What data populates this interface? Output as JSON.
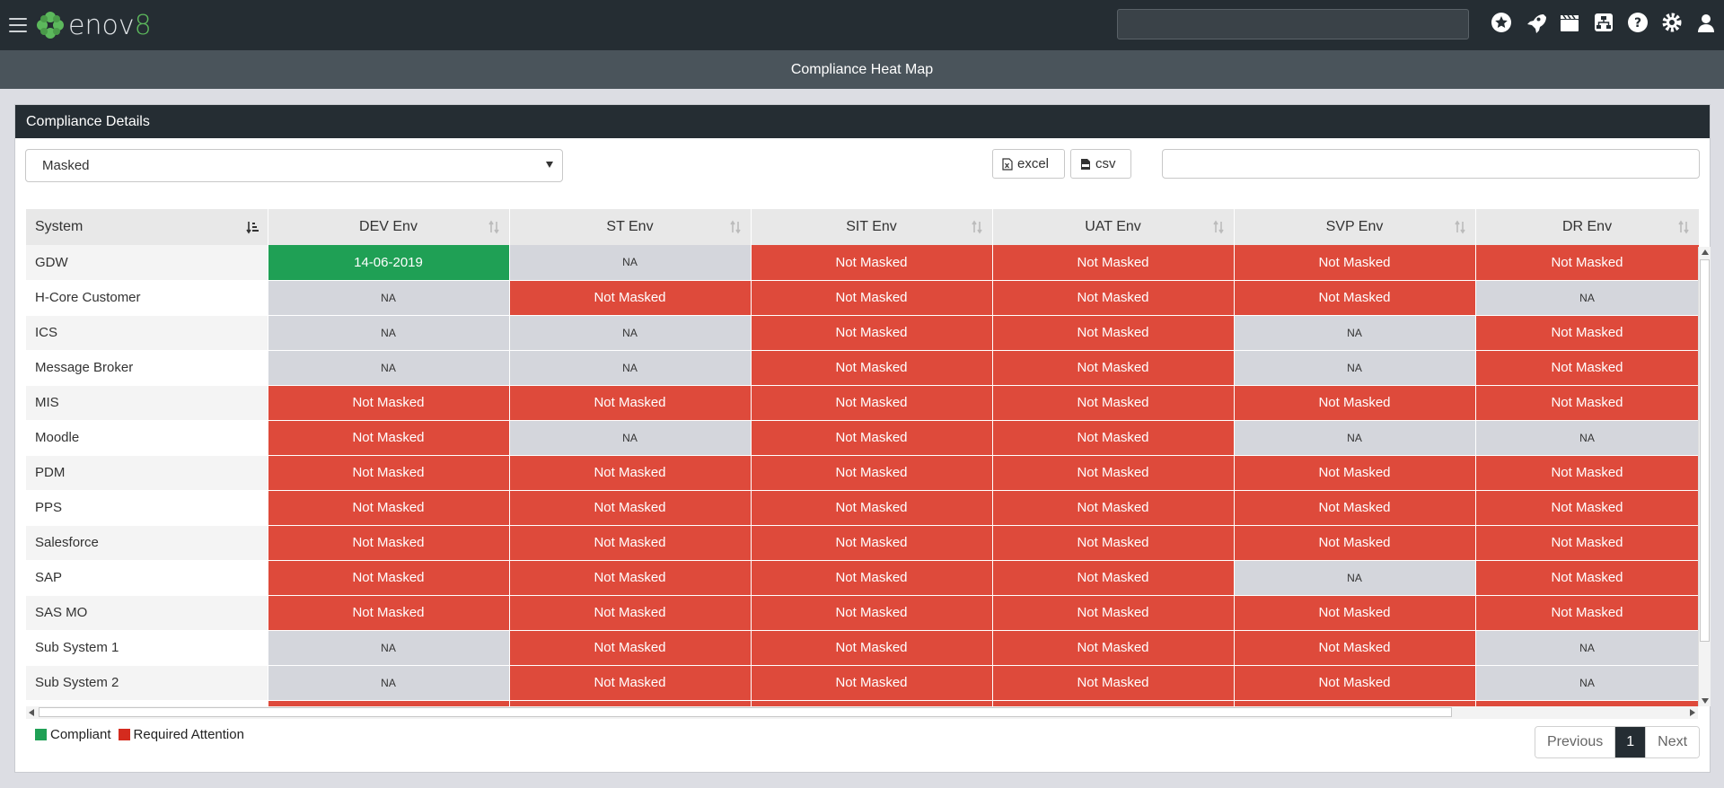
{
  "app": {
    "brand_prefix": "enov",
    "brand_suffix": "8",
    "page_title": "Compliance Heat Map"
  },
  "panel": {
    "title": "Compliance Details",
    "filter_selected": "Masked",
    "export_excel": "excel",
    "export_csv": "csv",
    "search_value": ""
  },
  "table": {
    "columns": [
      "System",
      "DEV Env",
      "ST Env",
      "SIT Env",
      "UAT Env",
      "SVP Env",
      "DR Env"
    ],
    "rows": [
      {
        "system": "GDW",
        "cells": [
          "14-06-2019",
          "NA",
          "Not Masked",
          "Not Masked",
          "Not Masked",
          "Not Masked"
        ]
      },
      {
        "system": "H-Core Customer",
        "cells": [
          "NA",
          "Not Masked",
          "Not Masked",
          "Not Masked",
          "Not Masked",
          "NA"
        ]
      },
      {
        "system": "ICS",
        "cells": [
          "NA",
          "NA",
          "Not Masked",
          "Not Masked",
          "NA",
          "Not Masked"
        ]
      },
      {
        "system": "Message Broker",
        "cells": [
          "NA",
          "NA",
          "Not Masked",
          "Not Masked",
          "NA",
          "Not Masked"
        ]
      },
      {
        "system": "MIS",
        "cells": [
          "Not Masked",
          "Not Masked",
          "Not Masked",
          "Not Masked",
          "Not Masked",
          "Not Masked"
        ]
      },
      {
        "system": "Moodle",
        "cells": [
          "Not Masked",
          "NA",
          "Not Masked",
          "Not Masked",
          "NA",
          "NA"
        ]
      },
      {
        "system": "PDM",
        "cells": [
          "Not Masked",
          "Not Masked",
          "Not Masked",
          "Not Masked",
          "Not Masked",
          "Not Masked"
        ]
      },
      {
        "system": "PPS",
        "cells": [
          "Not Masked",
          "Not Masked",
          "Not Masked",
          "Not Masked",
          "Not Masked",
          "Not Masked"
        ]
      },
      {
        "system": "Salesforce",
        "cells": [
          "Not Masked",
          "Not Masked",
          "Not Masked",
          "Not Masked",
          "Not Masked",
          "Not Masked"
        ]
      },
      {
        "system": "SAP",
        "cells": [
          "Not Masked",
          "Not Masked",
          "Not Masked",
          "Not Masked",
          "NA",
          "Not Masked"
        ]
      },
      {
        "system": "SAS MO",
        "cells": [
          "Not Masked",
          "Not Masked",
          "Not Masked",
          "Not Masked",
          "Not Masked",
          "Not Masked"
        ]
      },
      {
        "system": "Sub System 1",
        "cells": [
          "NA",
          "Not Masked",
          "Not Masked",
          "Not Masked",
          "Not Masked",
          "NA"
        ]
      },
      {
        "system": "Sub System 2",
        "cells": [
          "NA",
          "Not Masked",
          "Not Masked",
          "Not Masked",
          "Not Masked",
          "NA"
        ]
      },
      {
        "system": "",
        "cells": [
          "",
          "",
          "",
          "",
          "",
          ""
        ]
      }
    ],
    "green_cells": [
      [
        0,
        0
      ]
    ],
    "colors": {
      "compliant": "#1fa055",
      "attention": "#de4a3b",
      "na": "#d4d6dc"
    }
  },
  "legend": {
    "compliant": "Compliant",
    "attention": "Required Attention"
  },
  "pagination": {
    "previous": "Previous",
    "current": "1",
    "next": "Next"
  }
}
